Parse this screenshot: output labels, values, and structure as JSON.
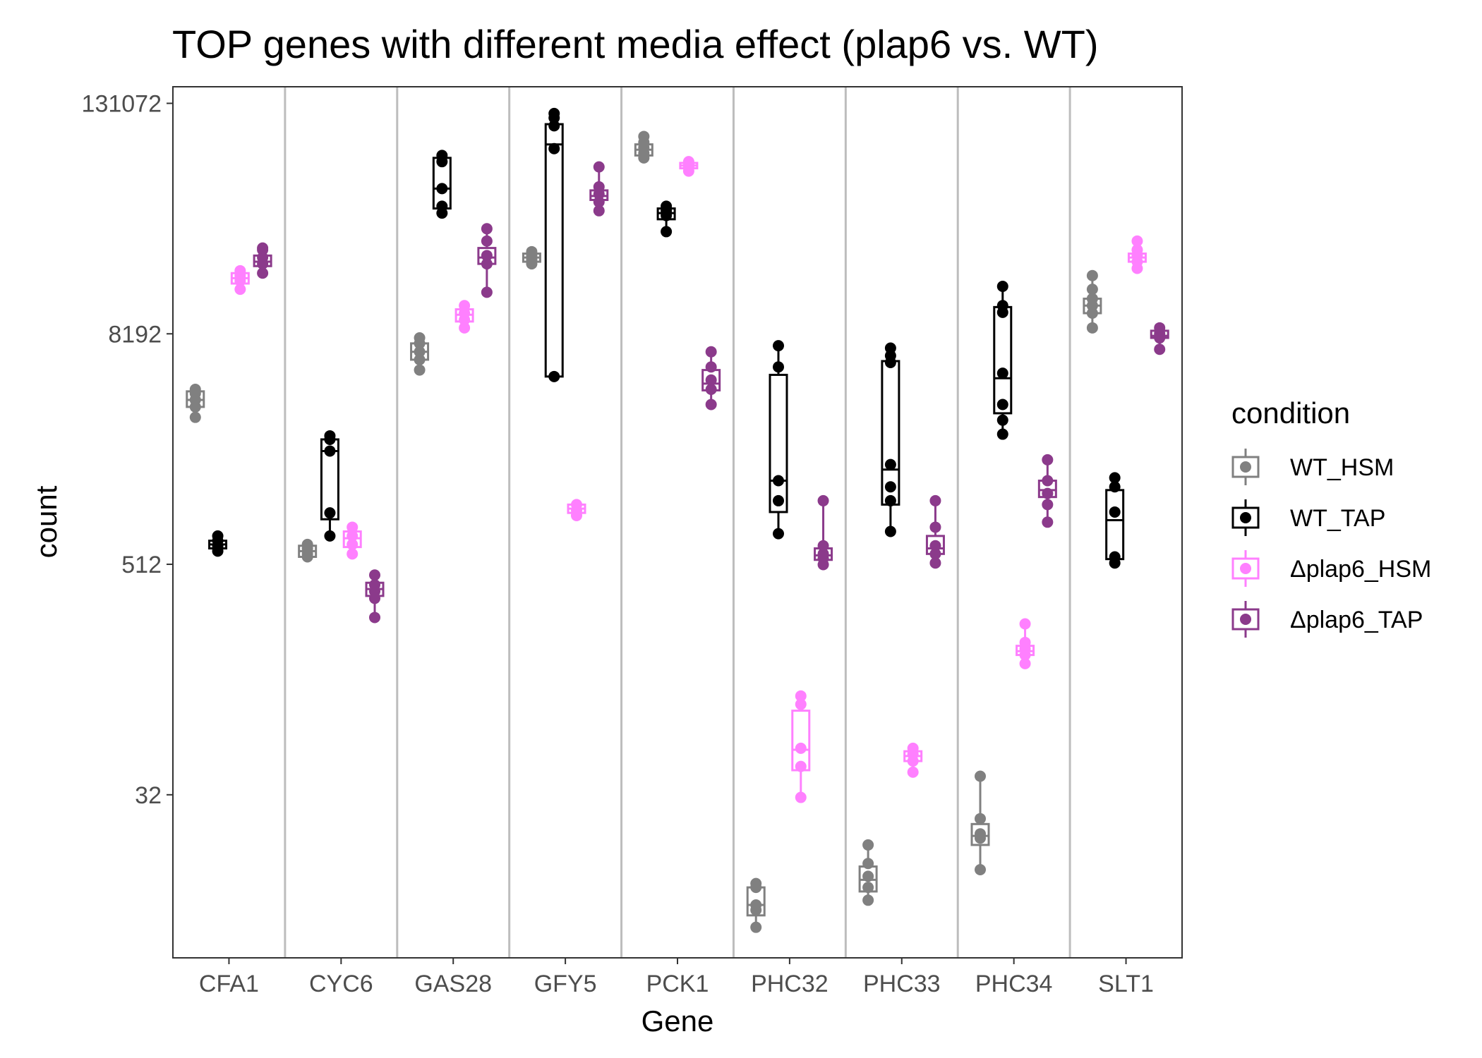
{
  "chart_data": {
    "type": "box",
    "title": "TOP genes with different media effect (plap6 vs. WT)",
    "xlabel": "Gene",
    "ylabel": "count",
    "y_scale": "log2",
    "ylim": [
      4.5,
      160000
    ],
    "yticks": [
      {
        "value": 32,
        "label": "32"
      },
      {
        "value": 512,
        "label": "512"
      },
      {
        "value": 8192,
        "label": "8192"
      },
      {
        "value": 131072,
        "label": "131072"
      }
    ],
    "grid": "vertical separators between genes",
    "legend": {
      "title": "condition",
      "position": "right",
      "entries": [
        {
          "name": "WT_HSM",
          "color": "#808080"
        },
        {
          "name": "WT_TAP",
          "color": "#000000"
        },
        {
          "name": "Δplap6_HSM",
          "color": "#ff80ff"
        },
        {
          "name": "Δplap6_TAP",
          "color": "#8b3a8b"
        }
      ]
    },
    "categories": [
      "CFA1",
      "CYC6",
      "GAS28",
      "GFY5",
      "PCK1",
      "PHC32",
      "PHC33",
      "PHC34",
      "SLT1"
    ],
    "series": [
      {
        "name": "WT_HSM",
        "color": "#808080",
        "boxes": [
          {
            "q1": 3400,
            "median": 3700,
            "q3": 4100,
            "points": [
              3000,
              3400,
              3700,
              4000,
              4200
            ]
          },
          {
            "q1": 560,
            "median": 600,
            "q3": 640,
            "points": [
              560,
              580,
              620,
              650
            ]
          },
          {
            "q1": 6000,
            "median": 6600,
            "q3": 7300,
            "points": [
              5300,
              6000,
              6600,
              7300,
              7800
            ]
          },
          {
            "q1": 19500,
            "median": 20500,
            "q3": 21500,
            "points": [
              19000,
              20000,
              21000,
              22000
            ]
          },
          {
            "q1": 70000,
            "median": 75000,
            "q3": 80000,
            "points": [
              68000,
              72000,
              77000,
              82000,
              88000
            ]
          },
          {
            "q1": 7.5,
            "median": 8.5,
            "q3": 10.5,
            "points": [
              6.5,
              8.0,
              8.5,
              10.5,
              11.0
            ]
          },
          {
            "q1": 10,
            "median": 11.5,
            "q3": 13.5,
            "points": [
              9.0,
              10.5,
              12.0,
              14.0,
              17.5
            ]
          },
          {
            "q1": 17.5,
            "median": 19.5,
            "q3": 22.5,
            "points": [
              13.0,
              19.0,
              20.0,
              24.0,
              40.0
            ]
          },
          {
            "q1": 10500,
            "median": 11500,
            "q3": 12500,
            "points": [
              8800,
              10500,
              11500,
              12500,
              14000,
              16500
            ]
          }
        ]
      },
      {
        "name": "WT_TAP",
        "color": "#000000",
        "boxes": [
          {
            "q1": 620,
            "median": 650,
            "q3": 680,
            "points": [
              600,
              640,
              680,
              720
            ]
          },
          {
            "q1": 880,
            "median": 2000,
            "q3": 2300,
            "points": [
              720,
              950,
              2000,
              2300,
              2400
            ]
          },
          {
            "q1": 37000,
            "median": 47000,
            "q3": 68000,
            "points": [
              35000,
              38000,
              47000,
              65000,
              70000
            ]
          },
          {
            "q1": 4900,
            "median": 80000,
            "q3": 102000,
            "points": [
              4900,
              76000,
              100000,
              110000,
              116000
            ]
          },
          {
            "q1": 32500,
            "median": 35000,
            "q3": 37000,
            "points": [
              28000,
              34000,
              36000,
              38000
            ]
          },
          {
            "q1": 960,
            "median": 1400,
            "q3": 5000,
            "points": [
              740,
              1100,
              1400,
              5500,
              7100
            ]
          },
          {
            "q1": 1050,
            "median": 1600,
            "q3": 5900,
            "points": [
              760,
              1100,
              1300,
              1700,
              5800,
              6300,
              6900
            ]
          },
          {
            "q1": 3150,
            "median": 4800,
            "q3": 11300,
            "points": [
              2450,
              2900,
              3500,
              5100,
              10600,
              11500,
              14500
            ]
          },
          {
            "q1": 545,
            "median": 870,
            "q3": 1250,
            "points": [
              520,
              560,
              960,
              1300,
              1450
            ]
          }
        ]
      },
      {
        "name": "Δplap6_HSM",
        "color": "#ff80ff",
        "boxes": [
          {
            "q1": 15000,
            "median": 16000,
            "q3": 17000,
            "points": [
              14000,
              15500,
              16500,
              17500
            ]
          },
          {
            "q1": 630,
            "median": 700,
            "q3": 760,
            "points": [
              580,
              650,
              720,
              800
            ]
          },
          {
            "q1": 9500,
            "median": 10300,
            "q3": 11000,
            "points": [
              8800,
              9700,
              10500,
              11500
            ]
          },
          {
            "q1": 950,
            "median": 1000,
            "q3": 1050,
            "points": [
              920,
              980,
              1050
            ]
          },
          {
            "q1": 60000,
            "median": 62000,
            "q3": 64000,
            "points": [
              58000,
              61000,
              63000,
              65000
            ]
          },
          {
            "q1": 43,
            "median": 55,
            "q3": 88,
            "points": [
              31,
              45,
              56,
              95,
              105
            ]
          },
          {
            "q1": 48,
            "median": 51,
            "q3": 54,
            "points": [
              42,
              48,
              52,
              56
            ]
          },
          {
            "q1": 172,
            "median": 180,
            "q3": 192,
            "points": [
              155,
              172,
              185,
              200,
              250
            ]
          },
          {
            "q1": 19500,
            "median": 20500,
            "q3": 21500,
            "points": [
              18000,
              19500,
              21000,
              22500,
              25000
            ]
          }
        ]
      },
      {
        "name": "Δplap6_TAP",
        "color": "#8b3a8b",
        "boxes": [
          {
            "q1": 18500,
            "median": 19500,
            "q3": 21000,
            "points": [
              17000,
              19000,
              20500,
              22500,
              23000
            ]
          },
          {
            "q1": 350,
            "median": 380,
            "q3": 410,
            "points": [
              270,
              340,
              370,
              400,
              450
            ]
          },
          {
            "q1": 19000,
            "median": 20500,
            "q3": 23000,
            "points": [
              13500,
              19000,
              21000,
              25000,
              29000
            ]
          },
          {
            "q1": 41000,
            "median": 43000,
            "q3": 46000,
            "points": [
              36000,
              40000,
              44000,
              48000,
              61000
            ]
          },
          {
            "q1": 4150,
            "median": 4500,
            "q3": 5300,
            "points": [
              3500,
              4200,
              4700,
              5500,
              6600
            ]
          },
          {
            "q1": 540,
            "median": 570,
            "q3": 620,
            "points": [
              510,
              550,
              580,
              640,
              1100
            ]
          },
          {
            "q1": 580,
            "median": 620,
            "q3": 720,
            "points": [
              520,
              580,
              640,
              800,
              1100
            ]
          },
          {
            "q1": 1150,
            "median": 1250,
            "q3": 1400,
            "points": [
              850,
              1050,
              1200,
              1400,
              1800
            ]
          },
          {
            "q1": 7800,
            "median": 8000,
            "q3": 8500,
            "points": [
              6800,
              7800,
              8200,
              8800
            ]
          }
        ]
      }
    ]
  }
}
